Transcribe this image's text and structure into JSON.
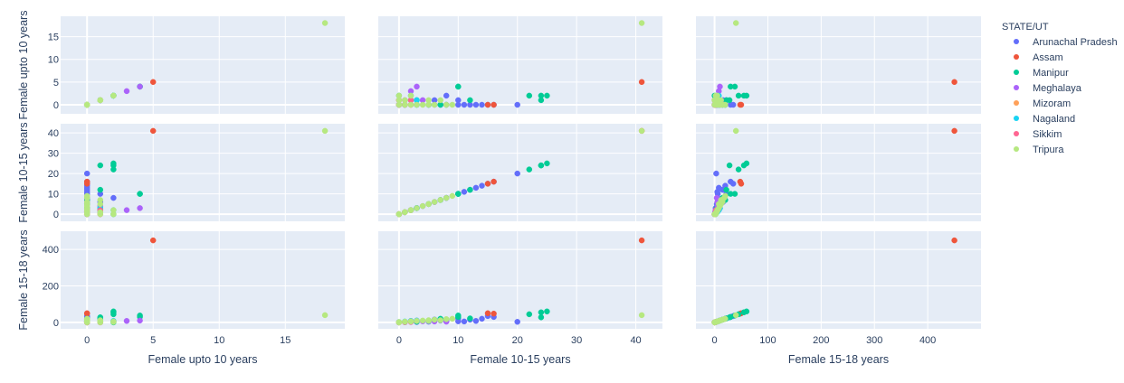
{
  "chart_data": {
    "type": "scatter",
    "subtype": "scatter-matrix",
    "dimensions": [
      "Female upto 10 years",
      "Female 10-15 years",
      "Female 15-18 years"
    ],
    "dimension_ranges": [
      [
        -2,
        19.5
      ],
      [
        -3.5,
        44.5
      ],
      [
        -35,
        500
      ]
    ],
    "ticks": [
      [
        0,
        5,
        10,
        15
      ],
      [
        0,
        10,
        20,
        30,
        40
      ],
      [
        0,
        100,
        200,
        300,
        400
      ]
    ],
    "y_ticks": [
      [
        0,
        5,
        10,
        15
      ],
      [
        0,
        10,
        20,
        30,
        40
      ],
      [
        0,
        200,
        400
      ]
    ],
    "legend": {
      "title": "STATE/UT",
      "placement": "right"
    },
    "grid": true,
    "series": [
      {
        "name": "Arunachal Pradesh",
        "color": "#636efa",
        "points": [
          [
            0,
            20,
            3
          ],
          [
            0,
            13,
            8
          ],
          [
            0,
            11,
            5
          ],
          [
            0,
            10,
            6
          ],
          [
            1,
            10,
            22
          ],
          [
            1,
            6,
            16
          ],
          [
            2,
            8,
            6
          ],
          [
            0,
            15,
            35
          ],
          [
            0,
            16,
            30
          ],
          [
            0,
            14,
            20
          ],
          [
            0,
            12,
            15
          ],
          [
            0,
            7,
            10
          ],
          [
            0,
            5,
            4
          ],
          [
            0,
            3,
            2
          ],
          [
            0,
            1,
            1
          ],
          [
            0,
            0,
            0
          ]
        ]
      },
      {
        "name": "Assam",
        "color": "#EF553B",
        "points": [
          [
            5,
            41,
            450
          ],
          [
            0,
            16,
            48
          ],
          [
            0,
            15,
            50
          ],
          [
            1,
            0,
            0
          ],
          [
            0,
            0,
            0
          ],
          [
            0,
            1,
            2
          ]
        ]
      },
      {
        "name": "Manipur",
        "color": "#00cc96",
        "points": [
          [
            2,
            25,
            60
          ],
          [
            2,
            24,
            55
          ],
          [
            2,
            22,
            45
          ],
          [
            1,
            24,
            28
          ],
          [
            4,
            10,
            38
          ],
          [
            4,
            10,
            30
          ],
          [
            1,
            12,
            22
          ],
          [
            0,
            5,
            10
          ],
          [
            0,
            7,
            20
          ],
          [
            0,
            3,
            4
          ],
          [
            0,
            1,
            2
          ],
          [
            0,
            0,
            0
          ],
          [
            1,
            2,
            5
          ],
          [
            0,
            8,
            15
          ],
          [
            2,
            0,
            0
          ],
          [
            1,
            3,
            8
          ]
        ]
      },
      {
        "name": "Meghalaya",
        "color": "#ab63fa",
        "points": [
          [
            4,
            3,
            10
          ],
          [
            3,
            2,
            8
          ],
          [
            1,
            4,
            6
          ],
          [
            0,
            6,
            5
          ],
          [
            0,
            8,
            4
          ],
          [
            0,
            2,
            2
          ],
          [
            0,
            0,
            0
          ],
          [
            1,
            1,
            1
          ]
        ]
      },
      {
        "name": "Mizoram",
        "color": "#FFA15A",
        "points": [
          [
            0,
            1,
            2
          ],
          [
            0,
            0,
            1
          ],
          [
            0,
            2,
            3
          ],
          [
            0,
            0,
            0
          ]
        ]
      },
      {
        "name": "Nagaland",
        "color": "#19d3f3",
        "points": [
          [
            2,
            2,
            8
          ],
          [
            1,
            3,
            10
          ],
          [
            0,
            1,
            5
          ],
          [
            0,
            0,
            2
          ]
        ]
      },
      {
        "name": "Sikkim",
        "color": "#FF6692",
        "points": [
          [
            1,
            0,
            1
          ],
          [
            0,
            1,
            2
          ],
          [
            0,
            0,
            0
          ],
          [
            1,
            2,
            3
          ]
        ]
      },
      {
        "name": "Tripura",
        "color": "#B6E880",
        "points": [
          [
            18,
            41,
            40
          ],
          [
            0,
            8,
            18
          ],
          [
            0,
            6,
            15
          ],
          [
            0,
            5,
            12
          ],
          [
            0,
            4,
            10
          ],
          [
            0,
            3,
            8
          ],
          [
            0,
            2,
            6
          ],
          [
            1,
            1,
            3
          ],
          [
            2,
            0,
            2
          ],
          [
            1,
            0,
            0
          ],
          [
            0,
            0,
            0
          ],
          [
            0,
            1,
            4
          ],
          [
            2,
            2,
            5
          ],
          [
            1,
            7,
            12
          ],
          [
            0,
            9,
            20
          ],
          [
            1,
            5,
            8
          ]
        ]
      }
    ]
  }
}
